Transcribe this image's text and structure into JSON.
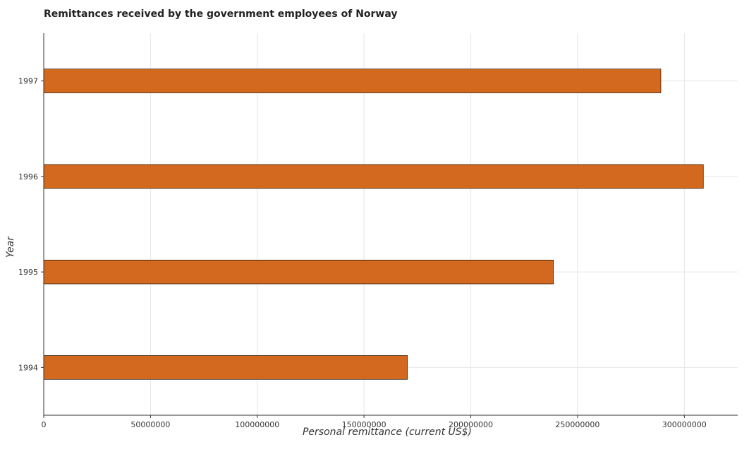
{
  "chart_data": {
    "type": "bar",
    "orientation": "horizontal",
    "title": "Remittances received by the government employees of Norway",
    "xlabel": "Personal remittance (current US$)",
    "ylabel": "Year",
    "categories": [
      "1994",
      "1995",
      "1996",
      "1997"
    ],
    "values": [
      170300000,
      238700000,
      308900000,
      289000000
    ],
    "xlim": [
      0,
      325000000
    ],
    "xticks": [
      0,
      50000000,
      100000000,
      150000000,
      200000000,
      250000000,
      300000000
    ],
    "xtick_labels": [
      "0",
      "50000000",
      "100000000",
      "150000000",
      "200000000",
      "250000000",
      "300000000"
    ],
    "grid": true,
    "legend": "none",
    "colors": {
      "bar_fill": "#d2691e",
      "bar_stroke": "#000000",
      "grid": "#e6e6e6"
    }
  }
}
